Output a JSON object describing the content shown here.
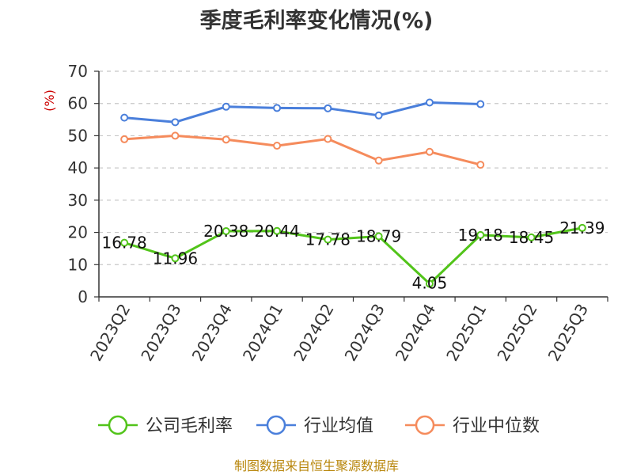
{
  "chart_data": {
    "type": "line",
    "title": "季度毛利率变化情况(%)",
    "ylabel": "(%)",
    "ylim": [
      0,
      70
    ],
    "yticks": [
      0,
      10,
      20,
      30,
      40,
      50,
      60,
      70
    ],
    "categories": [
      "2023Q2",
      "2023Q3",
      "2023Q4",
      "2024Q1",
      "2024Q2",
      "2024Q3",
      "2024Q4",
      "2025Q1",
      "2025Q2",
      "2025Q3"
    ],
    "grid": "horizontal-dashed",
    "legend_position": "bottom",
    "series": [
      {
        "name": "公司毛利率",
        "color": "#52c41a",
        "values": [
          16.78,
          11.96,
          20.38,
          20.44,
          17.78,
          18.79,
          4.05,
          19.18,
          18.45,
          21.39
        ],
        "labels": [
          "16.78",
          "11.96",
          "20.38",
          "20.44",
          "17.78",
          "18.79",
          "4.05",
          "19.18",
          "18.45",
          "21.39"
        ]
      },
      {
        "name": "行业均值",
        "color": "#4a7fdb",
        "values": [
          55.6,
          54.2,
          59.0,
          58.6,
          58.5,
          56.3,
          60.3,
          59.8,
          null,
          null
        ]
      },
      {
        "name": "行业中位数",
        "color": "#f58b5c",
        "values": [
          48.9,
          50.0,
          48.8,
          46.9,
          49.0,
          42.3,
          45.0,
          41.0,
          null,
          null
        ]
      }
    ]
  },
  "footer": {
    "source": "制图数据来自恒生聚源数据库"
  }
}
